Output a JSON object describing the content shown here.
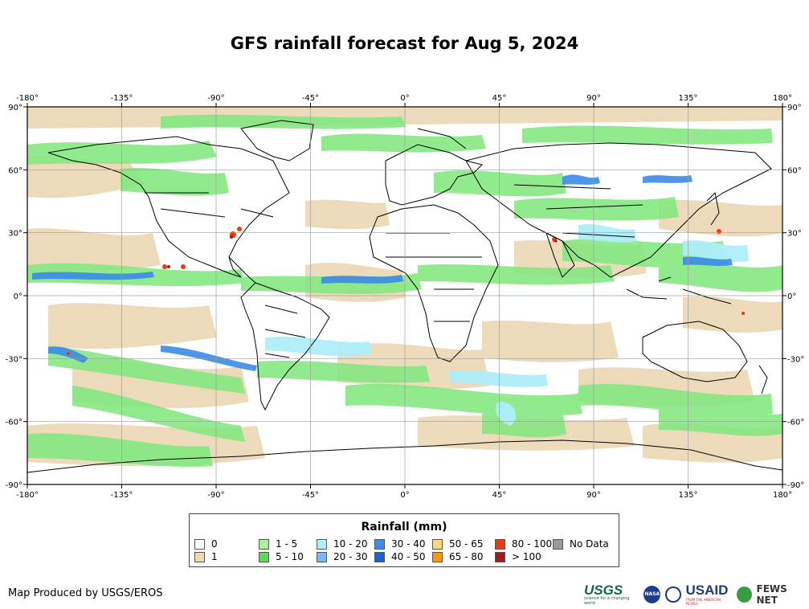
{
  "title": "GFS rainfall forecast for Aug 5, 2024",
  "map": {
    "lon_ticks": [
      "-180°",
      "-135°",
      "-90°",
      "-45°",
      "0°",
      "45°",
      "90°",
      "135°",
      "180°"
    ],
    "lat_ticks": [
      "90°",
      "60°",
      "30°",
      "0°",
      "-30°",
      "-60°",
      "-90°"
    ],
    "colors": {
      "ocean": "#ffffff",
      "land_outline": "#000000",
      "gridline": "#9e9e9e",
      "rain_1": "#ecd9b8",
      "rain_5_10": "#86e882",
      "rain_10_20": "#aeeefa",
      "rain_30_40": "#3b8be8",
      "rain_80_100": "#e83a14",
      "rain_gt_100": "#a31c1c"
    }
  },
  "legend": {
    "title": "Rainfall (mm)",
    "items": [
      {
        "label": "0",
        "color": "#ffffff"
      },
      {
        "label": "1",
        "color": "#ecd9b8"
      },
      {
        "label": "1 - 5",
        "color": "#aaf0a0"
      },
      {
        "label": "5 - 10",
        "color": "#5fd85a"
      },
      {
        "label": "10 - 20",
        "color": "#aeeefa"
      },
      {
        "label": "20 - 30",
        "color": "#7ab8f5"
      },
      {
        "label": "30 - 40",
        "color": "#3f8be8"
      },
      {
        "label": "40 - 50",
        "color": "#1f5fd6"
      },
      {
        "label": "50 - 65",
        "color": "#f7d97a"
      },
      {
        "label": "65 - 80",
        "color": "#f59a14"
      },
      {
        "label": "80 - 100",
        "color": "#e83a14"
      },
      {
        "label": "> 100",
        "color": "#a31c1c"
      },
      {
        "label": "No Data",
        "color": "#9a9a9a"
      }
    ]
  },
  "credit": "Map Produced by USGS/EROS",
  "logos": {
    "usgs": "USGS",
    "usgs_tagline": "science for a changing world",
    "nasa": "NASA",
    "usaid": "USAID",
    "usaid_tagline": "FROM THE AMERICAN PEOPLE",
    "fews": "FEWS NET"
  }
}
